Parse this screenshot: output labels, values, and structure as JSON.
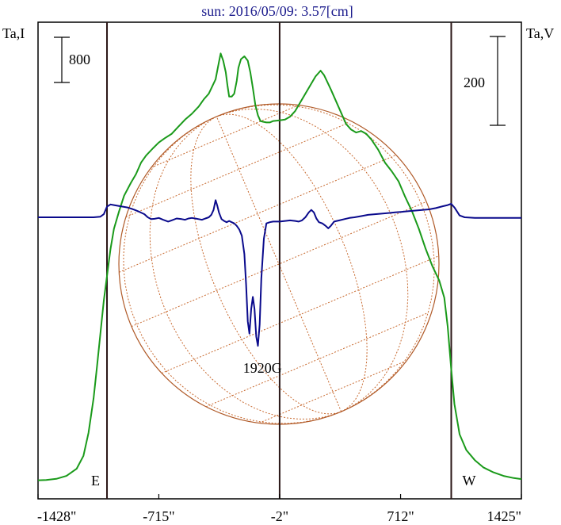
{
  "chart_data": {
    "type": "line",
    "title": "sun: 2016/05/09: 3.57[cm]",
    "left_axis_label": "Ta,I",
    "right_axis_label": "Ta,V",
    "scale_bar_left": "800",
    "scale_bar_right": "200",
    "x_ticks": [
      {
        "value": -1428,
        "label": "-1428\""
      },
      {
        "value": -715,
        "label": "-715\""
      },
      {
        "value": -2,
        "label": "-2\""
      },
      {
        "value": 712,
        "label": "712\""
      },
      {
        "value": 1425,
        "label": "1425\""
      }
    ],
    "xlim": [
      -1428,
      1425
    ],
    "limb_markers": [
      {
        "label": "E",
        "x": -1021
      },
      {
        "label": "W",
        "x": 1011
      }
    ],
    "center_line_x": -2,
    "annotation": {
      "text": "1920G",
      "x": -80
    },
    "series": [
      {
        "id": "stokes-I",
        "color": "#1a9a1a",
        "points": [
          [
            -1428,
            30
          ],
          [
            -1380,
            32
          ],
          [
            -1320,
            40
          ],
          [
            -1260,
            60
          ],
          [
            -1200,
            110
          ],
          [
            -1160,
            200
          ],
          [
            -1130,
            360
          ],
          [
            -1100,
            600
          ],
          [
            -1080,
            820
          ],
          [
            -1060,
            1050
          ],
          [
            -1040,
            1280
          ],
          [
            -1021,
            1450
          ],
          [
            -1000,
            1640
          ],
          [
            -980,
            1780
          ],
          [
            -950,
            1900
          ],
          [
            -920,
            2010
          ],
          [
            -880,
            2100
          ],
          [
            -850,
            2160
          ],
          [
            -820,
            2240
          ],
          [
            -790,
            2290
          ],
          [
            -750,
            2340
          ],
          [
            -715,
            2380
          ],
          [
            -680,
            2410
          ],
          [
            -640,
            2440
          ],
          [
            -600,
            2490
          ],
          [
            -560,
            2540
          ],
          [
            -520,
            2580
          ],
          [
            -480,
            2630
          ],
          [
            -450,
            2680
          ],
          [
            -420,
            2720
          ],
          [
            -400,
            2770
          ],
          [
            -380,
            2820
          ],
          [
            -370,
            2880
          ],
          [
            -360,
            2940
          ],
          [
            -350,
            3000
          ],
          [
            -335,
            2950
          ],
          [
            -320,
            2870
          ],
          [
            -310,
            2780
          ],
          [
            -300,
            2700
          ],
          [
            -285,
            2700
          ],
          [
            -270,
            2720
          ],
          [
            -255,
            2810
          ],
          [
            -245,
            2900
          ],
          [
            -230,
            2960
          ],
          [
            -210,
            2980
          ],
          [
            -190,
            2950
          ],
          [
            -175,
            2870
          ],
          [
            -160,
            2760
          ],
          [
            -145,
            2640
          ],
          [
            -130,
            2570
          ],
          [
            -115,
            2530
          ],
          [
            -100,
            2525
          ],
          [
            -80,
            2520
          ],
          [
            -60,
            2520
          ],
          [
            -40,
            2530
          ],
          [
            -2,
            2535
          ],
          [
            30,
            2540
          ],
          [
            60,
            2560
          ],
          [
            90,
            2600
          ],
          [
            120,
            2660
          ],
          [
            150,
            2720
          ],
          [
            180,
            2780
          ],
          [
            210,
            2840
          ],
          [
            240,
            2880
          ],
          [
            260,
            2850
          ],
          [
            280,
            2800
          ],
          [
            300,
            2750
          ],
          [
            330,
            2670
          ],
          [
            360,
            2590
          ],
          [
            390,
            2510
          ],
          [
            420,
            2470
          ],
          [
            450,
            2450
          ],
          [
            480,
            2460
          ],
          [
            510,
            2440
          ],
          [
            540,
            2400
          ],
          [
            580,
            2330
          ],
          [
            620,
            2240
          ],
          [
            660,
            2180
          ],
          [
            700,
            2110
          ],
          [
            740,
            2000
          ],
          [
            780,
            1900
          ],
          [
            820,
            1780
          ],
          [
            860,
            1640
          ],
          [
            900,
            1520
          ],
          [
            940,
            1420
          ],
          [
            970,
            1300
          ],
          [
            990,
            1100
          ],
          [
            1011,
            800
          ],
          [
            1030,
            560
          ],
          [
            1060,
            350
          ],
          [
            1100,
            240
          ],
          [
            1150,
            170
          ],
          [
            1200,
            120
          ],
          [
            1260,
            85
          ],
          [
            1320,
            60
          ],
          [
            1380,
            45
          ],
          [
            1425,
            38
          ]
        ]
      },
      {
        "id": "stokes-V",
        "color": "#0a0a8c",
        "points": [
          [
            -1428,
            0
          ],
          [
            -1300,
            0
          ],
          [
            -1200,
            0
          ],
          [
            -1100,
            0
          ],
          [
            -1060,
            2
          ],
          [
            -1040,
            10
          ],
          [
            -1021,
            35
          ],
          [
            -1000,
            42
          ],
          [
            -980,
            40
          ],
          [
            -940,
            36
          ],
          [
            -900,
            32
          ],
          [
            -860,
            25
          ],
          [
            -830,
            18
          ],
          [
            -800,
            10
          ],
          [
            -780,
            0
          ],
          [
            -760,
            -6
          ],
          [
            -740,
            -5
          ],
          [
            -715,
            -2
          ],
          [
            -690,
            -8
          ],
          [
            -660,
            -14
          ],
          [
            -640,
            -10
          ],
          [
            -610,
            -4
          ],
          [
            -580,
            -6
          ],
          [
            -560,
            -8
          ],
          [
            -540,
            -4
          ],
          [
            -520,
            -2
          ],
          [
            -500,
            -4
          ],
          [
            -480,
            -6
          ],
          [
            -460,
            -8
          ],
          [
            -440,
            -4
          ],
          [
            -420,
            0
          ],
          [
            -405,
            8
          ],
          [
            -392,
            24
          ],
          [
            -380,
            56
          ],
          [
            -370,
            38
          ],
          [
            -360,
            16
          ],
          [
            -345,
            -6
          ],
          [
            -330,
            -12
          ],
          [
            -315,
            -16
          ],
          [
            -300,
            -12
          ],
          [
            -285,
            -16
          ],
          [
            -270,
            -20
          ],
          [
            -255,
            -28
          ],
          [
            -240,
            -40
          ],
          [
            -225,
            -60
          ],
          [
            -210,
            -120
          ],
          [
            -200,
            -220
          ],
          [
            -190,
            -340
          ],
          [
            -180,
            -380
          ],
          [
            -170,
            -300
          ],
          [
            -160,
            -260
          ],
          [
            -150,
            -300
          ],
          [
            -140,
            -390
          ],
          [
            -130,
            -420
          ],
          [
            -120,
            -350
          ],
          [
            -110,
            -200
          ],
          [
            -95,
            -70
          ],
          [
            -80,
            -20
          ],
          [
            -60,
            -16
          ],
          [
            -40,
            -14
          ],
          [
            -2,
            -14
          ],
          [
            30,
            -12
          ],
          [
            60,
            -10
          ],
          [
            90,
            -12
          ],
          [
            110,
            -14
          ],
          [
            130,
            -10
          ],
          [
            150,
            0
          ],
          [
            170,
            16
          ],
          [
            185,
            24
          ],
          [
            200,
            16
          ],
          [
            215,
            -4
          ],
          [
            230,
            -16
          ],
          [
            250,
            -20
          ],
          [
            270,
            -28
          ],
          [
            285,
            -36
          ],
          [
            300,
            -28
          ],
          [
            320,
            -14
          ],
          [
            350,
            -10
          ],
          [
            380,
            -6
          ],
          [
            410,
            -2
          ],
          [
            440,
            0
          ],
          [
            480,
            4
          ],
          [
            520,
            8
          ],
          [
            560,
            10
          ],
          [
            600,
            12
          ],
          [
            640,
            14
          ],
          [
            680,
            16
          ],
          [
            720,
            18
          ],
          [
            760,
            20
          ],
          [
            800,
            22
          ],
          [
            840,
            24
          ],
          [
            880,
            26
          ],
          [
            920,
            30
          ],
          [
            960,
            36
          ],
          [
            990,
            40
          ],
          [
            1011,
            44
          ],
          [
            1030,
            32
          ],
          [
            1060,
            6
          ],
          [
            1090,
            0
          ],
          [
            1150,
            -2
          ],
          [
            1250,
            -2
          ],
          [
            1350,
            -2
          ],
          [
            1425,
            -2
          ]
        ]
      }
    ],
    "colors": {
      "title": "#1a1a8c",
      "frame": "#000000",
      "vertical_lines": "#2a1616",
      "solar_disk": "#b05a28",
      "grid_lines": "#c86a30"
    }
  }
}
